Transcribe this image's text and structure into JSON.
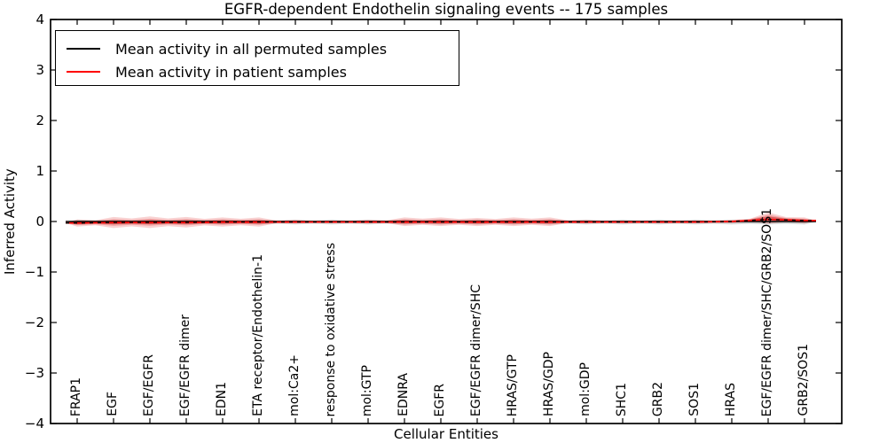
{
  "title": "EGFR-dependent Endothelin signaling events -- 175 samples",
  "axes": {
    "xlabel": "Cellular Entities",
    "ylabel": "Inferred Activity",
    "ytick_labels": [
      "4",
      "3",
      "2",
      "1",
      "0",
      "−1",
      "−2",
      "−3",
      "−4"
    ]
  },
  "legend": {
    "items": [
      {
        "label": "Mean activity in all permuted samples",
        "color": "#000000"
      },
      {
        "label": "Mean activity in patient samples",
        "color": "#ff0000"
      }
    ]
  },
  "chart_data": {
    "type": "area",
    "title": "EGFR-dependent Endothelin signaling events -- 175 samples",
    "xlabel": "Cellular Entities",
    "ylabel": "Inferred Activity",
    "ylim": [
      -4,
      4
    ],
    "yticks": [
      4,
      3,
      2,
      1,
      0,
      -1,
      -2,
      -3,
      -4
    ],
    "grid": false,
    "legend_position": "upper left",
    "categories": [
      "FRAP1",
      "EGF",
      "EGF/EGFR",
      "EGF/EGFR dimer",
      "EDN1",
      "ETA receptor/Endothelin-1",
      "mol:Ca2+",
      "response to oxidative stress",
      "mol:GTP",
      "EDNRA",
      "EGFR",
      "EGF/EGFR dimer/SHC",
      "HRAS/GTP",
      "HRAS/GDP",
      "mol:GDP",
      "SHC1",
      "GRB2",
      "SOS1",
      "HRAS",
      "EGF/EGFR dimer/SHC/GRB2/SOS1",
      "GRB2/SOS1"
    ],
    "series": [
      {
        "name": "Mean activity in all permuted samples",
        "kind": "line",
        "color": "#000000",
        "values": [
          0,
          0,
          0,
          0,
          0,
          0,
          0,
          0,
          0,
          0,
          0,
          0,
          0,
          0,
          0,
          0,
          0,
          0,
          0,
          0,
          0
        ]
      },
      {
        "name": "Mean activity in patient samples",
        "kind": "line",
        "color": "#ff0000",
        "values": [
          -0.03,
          -0.02,
          -0.02,
          -0.02,
          -0.01,
          -0.01,
          -0.01,
          -0.01,
          -0.01,
          -0.01,
          -0.01,
          -0.01,
          -0.01,
          -0.01,
          -0.01,
          -0.01,
          -0.01,
          -0.01,
          0.0,
          0.04,
          0.02
        ]
      },
      {
        "name": "Permuted samples activity range",
        "kind": "band",
        "color": "#888888",
        "upper": [
          0.04,
          0.04,
          0.04,
          0.04,
          0.04,
          0.04,
          0.04,
          0.04,
          0.04,
          0.04,
          0.04,
          0.04,
          0.04,
          0.04,
          0.04,
          0.04,
          0.04,
          0.04,
          0.04,
          0.04,
          0.04
        ],
        "lower": [
          -0.06,
          -0.06,
          -0.06,
          -0.06,
          -0.06,
          -0.06,
          -0.06,
          -0.06,
          -0.06,
          -0.06,
          -0.06,
          -0.06,
          -0.06,
          -0.06,
          -0.06,
          -0.06,
          -0.06,
          -0.06,
          -0.06,
          -0.06,
          -0.06
        ]
      },
      {
        "name": "Patient samples activity range",
        "kind": "band",
        "color": "#e03030",
        "upper": [
          0.04,
          0.09,
          0.1,
          0.09,
          0.08,
          0.08,
          0.03,
          0.02,
          0.03,
          0.08,
          0.08,
          0.07,
          0.08,
          0.08,
          0.03,
          0.02,
          0.02,
          0.02,
          0.03,
          0.18,
          0.08
        ],
        "lower": [
          -0.1,
          -0.13,
          -0.13,
          -0.12,
          -0.1,
          -0.1,
          -0.04,
          -0.03,
          -0.04,
          -0.09,
          -0.09,
          -0.09,
          -0.09,
          -0.09,
          -0.04,
          -0.03,
          -0.03,
          -0.03,
          -0.03,
          -0.05,
          -0.04
        ]
      }
    ]
  }
}
